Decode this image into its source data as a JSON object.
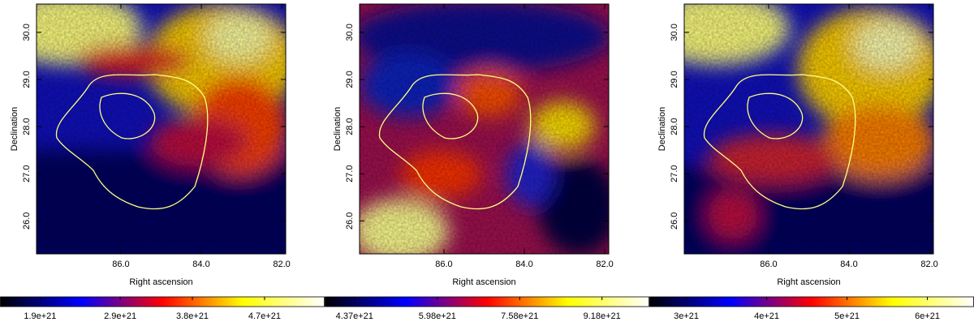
{
  "chart_data": [
    {
      "type": "image",
      "xlabel": "Right ascension",
      "ylabel": "Declination",
      "xlim": [
        88.1,
        81.9
      ],
      "xticks": [
        {
          "value": 86,
          "label": "86.0"
        },
        {
          "value": 84,
          "label": "84.0"
        },
        {
          "value": 82,
          "label": "82.0"
        }
      ],
      "ylim": [
        25.3,
        30.6
      ],
      "yticks": [
        {
          "value": 26,
          "label": "26.0"
        },
        {
          "value": 27,
          "label": "27.0"
        },
        {
          "value": 28,
          "label": "28.0"
        },
        {
          "value": 29,
          "label": "29.0"
        },
        {
          "value": 30,
          "label": "30.0"
        }
      ],
      "colormap": [
        "#000000",
        "#0000ff",
        "#ff0000",
        "#ffff00",
        "#ffffff"
      ],
      "colorbar_lim": [
        1.4e+21,
        5.45e+21
      ],
      "colorbar_ticks": [
        {
          "value": 1.9e+21,
          "label": "1.9e+21"
        },
        {
          "value": 2.9e+21,
          "label": "2.9e+21"
        },
        {
          "value": 3.8e+21,
          "label": "3.8e+21"
        },
        {
          "value": 4.7e+21,
          "label": "4.7e+21"
        }
      ]
    },
    {
      "type": "image",
      "xlabel": "Right ascension",
      "ylabel": "Declination",
      "xlim": [
        88.1,
        81.9
      ],
      "xticks": [
        {
          "value": 86,
          "label": "86.0"
        },
        {
          "value": 84,
          "label": "84.0"
        },
        {
          "value": 82,
          "label": "82.0"
        }
      ],
      "ylim": [
        25.3,
        30.6
      ],
      "yticks": [
        {
          "value": 26,
          "label": "26.0"
        },
        {
          "value": 27,
          "label": "27.0"
        },
        {
          "value": 28,
          "label": "28.0"
        },
        {
          "value": 29,
          "label": "29.0"
        },
        {
          "value": 30,
          "label": "30.0"
        }
      ],
      "colormap": [
        "#000000",
        "#0000ff",
        "#ff0000",
        "#ffff00",
        "#ffffff"
      ],
      "colorbar_lim": [
        3.79e+21,
        1.01e+22
      ],
      "colorbar_ticks": [
        {
          "value": 4.37e+21,
          "label": "4.37e+21"
        },
        {
          "value": 5.98e+21,
          "label": "5.98e+21"
        },
        {
          "value": 7.58e+21,
          "label": "7.58e+21"
        },
        {
          "value": 9.18e+21,
          "label": "9.18e+21"
        }
      ]
    },
    {
      "type": "image",
      "xlabel": "Right ascension",
      "ylabel": "Declination",
      "xlim": [
        88.1,
        81.9
      ],
      "xticks": [
        {
          "value": 86,
          "label": "86.0"
        },
        {
          "value": 84,
          "label": "84.0"
        },
        {
          "value": 82,
          "label": "82.0"
        }
      ],
      "ylim": [
        25.3,
        30.6
      ],
      "yticks": [
        {
          "value": 26,
          "label": "26.0"
        },
        {
          "value": 27,
          "label": "27.0"
        },
        {
          "value": 28,
          "label": "28.0"
        },
        {
          "value": 29,
          "label": "29.0"
        },
        {
          "value": 30,
          "label": "30.0"
        }
      ],
      "colormap": [
        "#000000",
        "#0000ff",
        "#ff0000",
        "#ffff00",
        "#ffffff"
      ],
      "colorbar_lim": [
        2.54e+21,
        6.58e+21
      ],
      "colorbar_ticks": [
        {
          "value": 3e+21,
          "label": "3e+21"
        },
        {
          "value": 4e+21,
          "label": "4e+21"
        },
        {
          "value": 5e+21,
          "label": "5e+21"
        },
        {
          "value": 6e+21,
          "label": "6e+21"
        }
      ]
    }
  ]
}
